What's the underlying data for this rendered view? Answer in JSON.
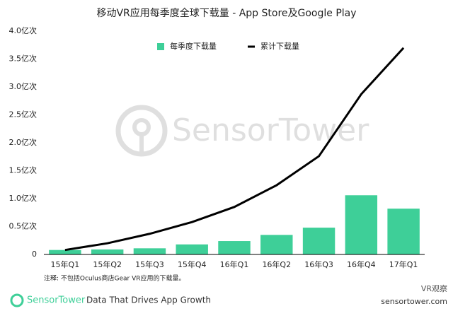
{
  "chart_data": {
    "type": "bar",
    "title": "移动VR应用每季度全球下载量 - App Store及Google Play",
    "watermark": "SensorTower",
    "note": "注释: 不包括Oculus商店Gear VR应用的下载量。",
    "categories": [
      "15年Q1",
      "15年Q2",
      "15年Q3",
      "15年Q4",
      "16年Q1",
      "16年Q2",
      "16年Q3",
      "16年Q4",
      "17年Q1"
    ],
    "series": [
      {
        "name": "每季度下载量",
        "color": "#3ecf98",
        "type": "bar",
        "values": [
          0.08,
          0.09,
          0.11,
          0.18,
          0.24,
          0.35,
          0.48,
          1.06,
          0.82
        ]
      },
      {
        "name": "累计下载量",
        "color": "#000000",
        "type": "line",
        "values": [
          0.08,
          0.2,
          0.37,
          0.58,
          0.85,
          1.24,
          1.76,
          2.87,
          3.7
        ]
      }
    ],
    "ylim": [
      0,
      4
    ],
    "yticks": [
      0,
      {
        "value": 0.5,
        "label": "0.5亿次"
      },
      {
        "value": 1,
        "label": "1.0亿次"
      },
      {
        "value": 1.5,
        "label": "1.5亿次"
      },
      {
        "value": 2,
        "label": "2.0亿次"
      },
      {
        "value": 2.5,
        "label": "2.5亿次"
      },
      {
        "value": 3,
        "label": "3.0亿次"
      },
      {
        "value": 3.5,
        "label": "3.5亿次"
      },
      {
        "value": 4,
        "label": "4.0亿次"
      }
    ],
    "grid": false,
    "legend": "top"
  },
  "footer": {
    "brand": "SensorTower",
    "tagline": "Data That Drives App Growth",
    "site": "sensortower.com",
    "badge": "VR观察"
  }
}
